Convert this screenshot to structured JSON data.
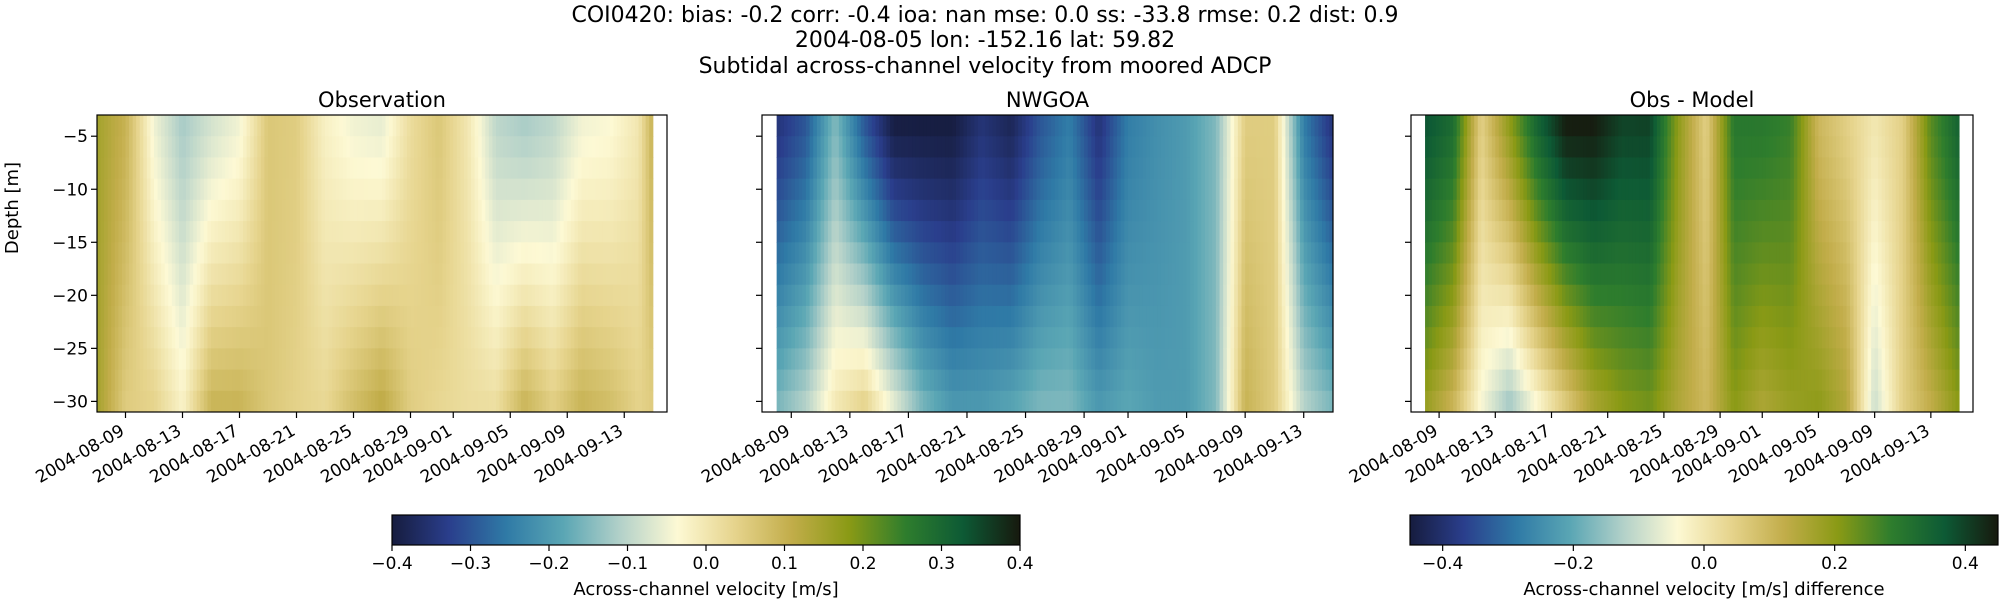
{
  "chart_data": {
    "type": "heatmap",
    "suptitle_lines": [
      "COI0420: bias: -0.2  corr: -0.4  ioa: nan  mse: 0.0  ss: -33.8  rmse: 0.2  dist: 0.9",
      "2004-08-05 lon: -152.16 lat: 59.82",
      "Subtidal across-channel velocity from moored ADCP"
    ],
    "ylabel": "Depth [m]",
    "y_ticks": [
      -5,
      -10,
      -15,
      -20,
      -25,
      -30
    ],
    "y_range": [
      -31,
      -3
    ],
    "x_tick_labels": [
      "2004-08-09",
      "2004-08-13",
      "2004-08-17",
      "2004-08-21",
      "2004-08-25",
      "2004-08-29",
      "2004-09-01",
      "2004-09-05",
      "2004-09-09",
      "2004-09-13"
    ],
    "panels": [
      {
        "title": "Observation",
        "x_date_range": [
          "2004-08-07",
          "2004-09-16"
        ],
        "data_date_range": [
          "2004-08-07",
          "2004-09-15"
        ],
        "colormap": "earth-diverging",
        "vmin": -0.4,
        "vmax": 0.4,
        "anchors": [
          {
            "date": "2004-08-07",
            "surface": 0.15,
            "bottom": 0.15
          },
          {
            "date": "2004-08-09",
            "surface": 0.1,
            "bottom": 0.05
          },
          {
            "date": "2004-08-11",
            "surface": -0.05,
            "bottom": 0.04
          },
          {
            "date": "2004-08-13",
            "surface": -0.12,
            "bottom": -0.02
          },
          {
            "date": "2004-08-15",
            "surface": -0.08,
            "bottom": 0.1
          },
          {
            "date": "2004-08-17",
            "surface": -0.05,
            "bottom": 0.1
          },
          {
            "date": "2004-08-19",
            "surface": 0.06,
            "bottom": 0.06
          },
          {
            "date": "2004-08-21",
            "surface": 0.05,
            "bottom": 0.04
          },
          {
            "date": "2004-08-23",
            "surface": -0.02,
            "bottom": 0.03
          },
          {
            "date": "2004-08-25",
            "surface": -0.05,
            "bottom": 0.08
          },
          {
            "date": "2004-08-27",
            "surface": -0.06,
            "bottom": 0.12
          },
          {
            "date": "2004-08-29",
            "surface": 0.02,
            "bottom": 0.05
          },
          {
            "date": "2004-08-31",
            "surface": 0.06,
            "bottom": 0.03
          },
          {
            "date": "2004-09-02",
            "surface": 0.0,
            "bottom": 0.02
          },
          {
            "date": "2004-09-04",
            "surface": -0.1,
            "bottom": 0.02
          },
          {
            "date": "2004-09-06",
            "surface": -0.12,
            "bottom": 0.1
          },
          {
            "date": "2004-09-08",
            "surface": -0.1,
            "bottom": 0.05
          },
          {
            "date": "2004-09-10",
            "surface": -0.05,
            "bottom": 0.1
          },
          {
            "date": "2004-09-12",
            "surface": -0.04,
            "bottom": 0.08
          },
          {
            "date": "2004-09-14",
            "surface": 0.0,
            "bottom": 0.04
          },
          {
            "date": "2004-09-15",
            "surface": 0.1,
            "bottom": 0.05
          }
        ]
      },
      {
        "title": "NWGOA",
        "x_date_range": [
          "2004-08-07",
          "2004-09-15"
        ],
        "data_date_range": [
          "2004-08-08",
          "2004-09-15"
        ],
        "colormap": "earth-diverging",
        "vmin": -0.4,
        "vmax": 0.4,
        "anchors": [
          {
            "date": "2004-08-08",
            "surface": -0.35,
            "bottom": -0.15
          },
          {
            "date": "2004-08-10",
            "surface": -0.3,
            "bottom": -0.1
          },
          {
            "date": "2004-08-12",
            "surface": -0.15,
            "bottom": 0.0
          },
          {
            "date": "2004-08-14",
            "surface": -0.3,
            "bottom": 0.05
          },
          {
            "date": "2004-08-16",
            "surface": -0.4,
            "bottom": -0.05
          },
          {
            "date": "2004-08-18",
            "surface": -0.4,
            "bottom": -0.15
          },
          {
            "date": "2004-08-20",
            "surface": -0.4,
            "bottom": -0.2
          },
          {
            "date": "2004-08-22",
            "surface": -0.35,
            "bottom": -0.2
          },
          {
            "date": "2004-08-24",
            "surface": -0.38,
            "bottom": -0.18
          },
          {
            "date": "2004-08-26",
            "surface": -0.3,
            "bottom": -0.15
          },
          {
            "date": "2004-08-28",
            "surface": -0.25,
            "bottom": -0.15
          },
          {
            "date": "2004-08-30",
            "surface": -0.35,
            "bottom": -0.2
          },
          {
            "date": "2004-09-01",
            "surface": -0.25,
            "bottom": -0.18
          },
          {
            "date": "2004-09-03",
            "surface": -0.22,
            "bottom": -0.2
          },
          {
            "date": "2004-09-05",
            "surface": -0.2,
            "bottom": -0.2
          },
          {
            "date": "2004-09-07",
            "surface": -0.15,
            "bottom": -0.15
          },
          {
            "date": "2004-09-09",
            "surface": 0.05,
            "bottom": 0.1
          },
          {
            "date": "2004-09-11",
            "surface": 0.05,
            "bottom": 0.05
          },
          {
            "date": "2004-09-13",
            "surface": -0.25,
            "bottom": -0.1
          },
          {
            "date": "2004-09-15",
            "surface": -0.35,
            "bottom": -0.15
          }
        ]
      },
      {
        "title": "Obs - Model",
        "x_date_range": [
          "2004-08-07",
          "2004-09-16"
        ],
        "data_date_range": [
          "2004-08-08",
          "2004-09-15"
        ],
        "colormap": "earth-diverging",
        "vmin": -0.45,
        "vmax": 0.45,
        "anchors": [
          {
            "date": "2004-08-08",
            "surface": 0.38,
            "bottom": 0.18
          },
          {
            "date": "2004-08-10",
            "surface": 0.33,
            "bottom": 0.1
          },
          {
            "date": "2004-08-12",
            "surface": 0.05,
            "bottom": -0.05
          },
          {
            "date": "2004-08-14",
            "surface": 0.2,
            "bottom": -0.15
          },
          {
            "date": "2004-08-16",
            "surface": 0.35,
            "bottom": -0.05
          },
          {
            "date": "2004-08-18",
            "surface": 0.45,
            "bottom": 0.05
          },
          {
            "date": "2004-08-20",
            "surface": 0.45,
            "bottom": 0.15
          },
          {
            "date": "2004-08-22",
            "surface": 0.4,
            "bottom": 0.2
          },
          {
            "date": "2004-08-24",
            "surface": 0.4,
            "bottom": 0.22
          },
          {
            "date": "2004-08-26",
            "surface": 0.2,
            "bottom": 0.15
          },
          {
            "date": "2004-08-28",
            "surface": 0.05,
            "bottom": 0.1
          },
          {
            "date": "2004-08-30",
            "surface": 0.3,
            "bottom": 0.2
          },
          {
            "date": "2004-09-01",
            "surface": 0.3,
            "bottom": 0.15
          },
          {
            "date": "2004-09-03",
            "surface": 0.28,
            "bottom": 0.18
          },
          {
            "date": "2004-09-05",
            "surface": 0.1,
            "bottom": 0.2
          },
          {
            "date": "2004-09-07",
            "surface": 0.05,
            "bottom": 0.15
          },
          {
            "date": "2004-09-09",
            "surface": 0.0,
            "bottom": -0.1
          },
          {
            "date": "2004-09-11",
            "surface": 0.05,
            "bottom": 0.05
          },
          {
            "date": "2004-09-13",
            "surface": 0.25,
            "bottom": 0.12
          },
          {
            "date": "2004-09-15",
            "surface": 0.35,
            "bottom": 0.2
          }
        ]
      }
    ],
    "colorbars": [
      {
        "label": "Across-channel velocity [m/s]",
        "vmin": -0.4,
        "vmax": 0.4,
        "ticks": [
          -0.4,
          -0.3,
          -0.2,
          -0.1,
          0.0,
          0.1,
          0.2,
          0.3,
          0.4
        ],
        "tick_labels": [
          "−0.4",
          "−0.3",
          "−0.2",
          "−0.1",
          "0.0",
          "0.1",
          "0.2",
          "0.3",
          "0.4"
        ]
      },
      {
        "label": "Across-channel velocity [m/s] difference",
        "vmin": -0.45,
        "vmax": 0.45,
        "ticks": [
          -0.4,
          -0.2,
          0.0,
          0.2,
          0.4
        ],
        "tick_labels": [
          "−0.4",
          "−0.2",
          "0.0",
          "0.2",
          "0.4"
        ]
      }
    ],
    "colormap_stops": [
      "#161c3e",
      "#2a3e8c",
      "#2f7aa6",
      "#5aa6b4",
      "#b3d1c9",
      "#fdf9d4",
      "#e6d48d",
      "#c2ad4a",
      "#8a9a15",
      "#2e7d2d",
      "#0d5a35",
      "#17190e"
    ]
  }
}
